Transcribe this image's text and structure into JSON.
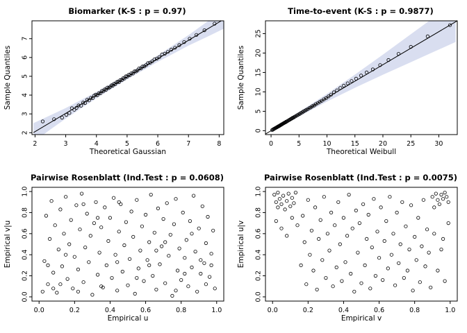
{
  "page": {
    "background": "#ffffff",
    "point_color": "#000000",
    "band_color": "#d9def0"
  },
  "chart_data": [
    {
      "type": "scatter",
      "kind": "qq-plot",
      "title": "Biomarker (K-S : p = 0.97)",
      "xlabel": "Theoretical Gaussian",
      "ylabel": "Sample Quantiles",
      "x_range": [
        1.9,
        8.15
      ],
      "y_range": [
        1.9,
        7.95
      ],
      "x_ticks": [
        "2",
        "3",
        "4",
        "5",
        "6",
        "7",
        "8"
      ],
      "y_ticks": [
        "2",
        "3",
        "4",
        "5",
        "6",
        "7"
      ],
      "band": {
        "color": "#d9def0",
        "x": [
          1.95,
          2.5,
          3.0,
          4.0,
          5.0,
          6.0,
          7.0,
          7.6,
          8.15
        ],
        "upper": [
          2.51,
          2.93,
          3.31,
          4.17,
          5.11,
          6.11,
          7.19,
          7.89,
          8.53
        ],
        "lower": [
          1.51,
          2.17,
          2.75,
          3.83,
          4.83,
          5.77,
          6.63,
          7.09,
          7.53
        ]
      },
      "line": {
        "x1": 1.95,
        "y1": 2.01,
        "x2": 8.15,
        "y2": 8.03
      },
      "points": [
        2.25,
        2.6,
        2.62,
        2.72,
        2.88,
        2.8,
        3.02,
        2.95,
        3.12,
        3.05,
        3.2,
        3.3,
        3.28,
        3.22,
        3.35,
        3.32,
        3.42,
        3.45,
        3.5,
        3.44,
        3.57,
        3.6,
        3.63,
        3.58,
        3.7,
        3.75,
        3.76,
        3.72,
        3.82,
        3.85,
        3.88,
        3.84,
        3.93,
        3.97,
        3.98,
        4.02,
        4.03,
        4.0,
        4.08,
        4.1,
        4.13,
        4.1,
        4.18,
        4.22,
        4.22,
        4.2,
        4.27,
        4.3,
        4.31,
        4.28,
        4.36,
        4.4,
        4.4,
        4.38,
        4.44,
        4.42,
        4.49,
        4.52,
        4.53,
        4.5,
        4.57,
        4.6,
        4.61,
        4.58,
        4.66,
        4.68,
        4.7,
        4.72,
        4.74,
        4.7,
        4.78,
        4.8,
        4.83,
        4.8,
        4.87,
        4.9,
        4.91,
        4.88,
        4.96,
        5.0,
        5.0,
        4.98,
        5.05,
        5.08,
        5.09,
        5.06,
        5.14,
        5.16,
        5.19,
        5.15,
        5.24,
        5.26,
        5.29,
        5.26,
        5.34,
        5.32,
        5.39,
        5.42,
        5.45,
        5.42,
        5.5,
        5.52,
        5.56,
        5.53,
        5.62,
        5.6,
        5.68,
        5.7,
        5.75,
        5.72,
        5.82,
        5.8,
        5.89,
        5.9,
        5.97,
        5.94,
        6.05,
        6.02,
        6.14,
        6.16,
        6.23,
        6.2,
        6.33,
        6.3,
        6.44,
        6.42,
        6.56,
        6.52,
        6.7,
        6.66,
        6.86,
        6.82,
        7.04,
        7.0,
        7.26,
        7.2,
        7.52,
        7.45,
        7.85,
        7.8
      ]
    },
    {
      "type": "scatter",
      "kind": "qq-plot",
      "title": "Time-to-event (K-S : p = 0.9877)",
      "xlabel": "Theoretical Weibull",
      "ylabel": "Sample Quantiles",
      "x_range": [
        -1.0,
        33.3
      ],
      "y_range": [
        -1.0,
        28.3
      ],
      "x_ticks": [
        "0",
        "5",
        "10",
        "15",
        "20",
        "25",
        "30"
      ],
      "y_ticks": [
        "0",
        "5",
        "10",
        "15",
        "20",
        "25"
      ],
      "band": {
        "color": "#d9def0",
        "x": [
          0,
          5,
          10,
          15,
          20,
          25,
          29,
          33
        ],
        "upper": [
          0.35,
          4.85,
          9.5,
          14.45,
          19.6,
          24.85,
          29.05,
          33.25
        ],
        "lower": [
          -0.35,
          3.65,
          7.5,
          11.05,
          14.4,
          17.65,
          20.25,
          22.85
        ]
      },
      "line": {
        "x1": -1.0,
        "y1": -0.85,
        "x2": 33.3,
        "y2": 28.3
      },
      "points": [
        0.2,
        0.18,
        0.35,
        0.32,
        0.5,
        0.45,
        0.62,
        0.55,
        0.75,
        0.66,
        0.85,
        0.74,
        0.95,
        0.82,
        1.05,
        0.9,
        1.15,
        1.0,
        1.25,
        1.05,
        1.35,
        1.17,
        1.45,
        1.22,
        1.55,
        1.33,
        1.65,
        1.4,
        1.75,
        1.5,
        1.85,
        1.56,
        1.95,
        1.68,
        2.05,
        1.73,
        2.2,
        1.88,
        2.3,
        1.97,
        2.45,
        2.1,
        2.55,
        2.15,
        2.7,
        2.32,
        2.8,
        2.36,
        2.95,
        2.52,
        3.1,
        2.62,
        3.25,
        2.78,
        3.4,
        2.87,
        3.55,
        3.04,
        3.7,
        3.12,
        3.85,
        3.3,
        4.0,
        3.38,
        4.2,
        3.58,
        4.35,
        3.68,
        4.55,
        3.88,
        4.75,
        4.02,
        4.95,
        4.22,
        5.15,
        4.36,
        5.35,
        4.57,
        5.6,
        4.74,
        5.8,
        4.96,
        6.05,
        5.12,
        6.3,
        5.38,
        6.55,
        5.55,
        6.85,
        5.84,
        7.1,
        6.0,
        7.4,
        6.32,
        7.7,
        6.5,
        8.0,
        6.85,
        8.35,
        7.1,
        8.7,
        7.42,
        9.05,
        7.7,
        9.45,
        8.1,
        9.85,
        8.4,
        10.3,
        8.85,
        10.75,
        9.3,
        11.25,
        9.9,
        11.8,
        10.4,
        12.4,
        11.0,
        13.0,
        11.6,
        13.7,
        12.2,
        14.4,
        12.8,
        15.2,
        13.4,
        16.1,
        14.2,
        17.1,
        15.0,
        18.2,
        15.8,
        19.5,
        16.9,
        21.0,
        18.2,
        22.8,
        19.8,
        25.0,
        21.6,
        28.0,
        24.3,
        32.0,
        27.2
      ]
    },
    {
      "type": "scatter",
      "kind": "rosenblatt",
      "title": "Pairwise Rosenblatt (Ind.Test : p = 0.0608)",
      "xlabel": "Empirical u",
      "ylabel": "Empirical v|u",
      "x_range": [
        -0.04,
        1.04
      ],
      "y_range": [
        -0.04,
        1.04
      ],
      "x_ticks": [
        "0.0",
        "0.2",
        "0.4",
        "0.6",
        "0.8",
        "1.0"
      ],
      "y_ticks": [
        "0.0",
        "0.2",
        "0.4",
        "0.6",
        "0.8",
        "1.0"
      ],
      "band": null,
      "line": null,
      "points": [
        0.02,
        0.05,
        0.03,
        0.34,
        0.04,
        0.77,
        0.05,
        0.12,
        0.06,
        0.55,
        0.07,
        0.91,
        0.08,
        0.23,
        0.09,
        0.68,
        0.1,
        0.04,
        0.11,
        0.45,
        0.12,
        0.83,
        0.13,
        0.29,
        0.14,
        0.6,
        0.15,
        0.95,
        0.16,
        0.17,
        0.17,
        0.5,
        0.18,
        0.73,
        0.19,
        0.08,
        0.2,
        0.38,
        0.21,
        0.87,
        0.22,
        0.26,
        0.23,
        0.64,
        0.24,
        0.98,
        0.25,
        0.14,
        0.26,
        0.47,
        0.27,
        0.79,
        0.28,
        0.33,
        0.29,
        0.58,
        0.3,
        0.02,
        0.31,
        0.7,
        0.32,
        0.9,
        0.33,
        0.21,
        0.34,
        0.42,
        0.35,
        0.66,
        0.36,
        0.09,
        0.37,
        0.85,
        0.38,
        0.3,
        0.39,
        0.53,
        0.4,
        0.75,
        0.41,
        0.18,
        0.42,
        0.94,
        0.43,
        0.4,
        0.44,
        0.06,
        0.45,
        0.62,
        0.46,
        0.88,
        0.47,
        0.24,
        0.48,
        0.49,
        0.49,
        0.71,
        0.5,
        0.11,
        0.51,
        0.36,
        0.52,
        0.81,
        0.53,
        0.57,
        0.54,
        0.03,
        0.55,
        0.92,
        0.56,
        0.27,
        0.57,
        0.44,
        0.58,
        0.67,
        0.59,
        0.15,
        0.6,
        0.78,
        0.61,
        0.35,
        0.62,
        0.52,
        0.63,
        0.97,
        0.64,
        0.2,
        0.65,
        0.61,
        0.66,
        0.07,
        0.67,
        0.84,
        0.68,
        0.31,
        0.69,
        0.48,
        0.7,
        0.74,
        0.71,
        0.13,
        0.72,
        0.89,
        0.73,
        0.39,
        0.74,
        0.59,
        0.75,
        0.01,
        0.76,
        0.69,
        0.77,
        0.93,
        0.78,
        0.25,
        0.79,
        0.46,
        0.8,
        0.16,
        0.81,
        0.8,
        0.82,
        0.37,
        0.83,
        0.54,
        0.84,
        0.1,
        0.85,
        0.72,
        0.86,
        0.28,
        0.87,
        0.96,
        0.88,
        0.43,
        0.89,
        0.05,
        0.9,
        0.65,
        0.91,
        0.22,
        0.92,
        0.86,
        0.93,
        0.32,
        0.94,
        0.51,
        0.95,
        0.76,
        0.96,
        0.19,
        0.97,
        0.41,
        0.98,
        0.63,
        0.99,
        0.08,
        0.05,
        0.3,
        0.08,
        0.08,
        0.12,
        0.12,
        0.15,
        0.4,
        0.22,
        0.05,
        0.33,
        0.75,
        0.44,
        0.33,
        0.55,
        0.18,
        0.62,
        0.3,
        0.66,
        0.44,
        0.71,
        0.52,
        0.77,
        0.06,
        0.82,
        0.22,
        0.86,
        0.6,
        0.91,
        0.35,
        0.94,
        0.12,
        0.97,
        0.3,
        0.25,
        0.88,
        0.35,
        0.1,
        0.45,
        0.9
      ]
    },
    {
      "type": "scatter",
      "kind": "rosenblatt",
      "title": "Pairwise Rosenblatt (Ind.Test : p = 0.0075)",
      "xlabel": "Empirical v",
      "ylabel": "Empirical u|v",
      "x_range": [
        -0.04,
        1.04
      ],
      "y_range": [
        -0.04,
        1.04
      ],
      "x_ticks": [
        "0.0",
        "0.2",
        "0.4",
        "0.6",
        "0.8",
        "1.0"
      ],
      "y_ticks": [
        "0.0",
        "0.2",
        "0.4",
        "0.6",
        "0.8",
        "1.0"
      ],
      "band": null,
      "line": null,
      "points": [
        0.01,
        0.97,
        0.02,
        0.9,
        0.03,
        0.99,
        0.03,
        0.85,
        0.04,
        0.93,
        0.05,
        0.88,
        0.06,
        0.96,
        0.07,
        0.83,
        0.08,
        0.91,
        0.09,
        0.98,
        0.1,
        0.86,
        0.11,
        0.94,
        0.12,
        0.89,
        0.13,
        0.99,
        0.02,
        0.72,
        0.05,
        0.65,
        0.08,
        0.58,
        0.11,
        0.75,
        0.14,
        0.68,
        0.9,
        0.95,
        0.92,
        0.98,
        0.93,
        0.92,
        0.95,
        0.97,
        0.96,
        0.93,
        0.97,
        0.99,
        0.98,
        0.95,
        0.99,
        0.9,
        0.94,
        0.88,
        0.91,
        0.85,
        0.16,
        0.3,
        0.17,
        0.77,
        0.18,
        0.52,
        0.19,
        0.12,
        0.2,
        0.92,
        0.21,
        0.4,
        0.22,
        0.63,
        0.23,
        0.25,
        0.24,
        0.85,
        0.25,
        0.07,
        0.26,
        0.55,
        0.27,
        0.73,
        0.28,
        0.35,
        0.29,
        0.95,
        0.3,
        0.18,
        0.31,
        0.6,
        0.32,
        0.44,
        0.33,
        0.8,
        0.34,
        0.1,
        0.35,
        0.68,
        0.36,
        0.28,
        0.37,
        0.9,
        0.38,
        0.5,
        0.39,
        0.15,
        0.4,
        0.75,
        0.41,
        0.33,
        0.42,
        0.58,
        0.43,
        0.97,
        0.44,
        0.22,
        0.45,
        0.65,
        0.46,
        0.05,
        0.47,
        0.82,
        0.48,
        0.42,
        0.49,
        0.7,
        0.5,
        0.13,
        0.51,
        0.88,
        0.52,
        0.3,
        0.53,
        0.55,
        0.54,
        0.78,
        0.55,
        0.08,
        0.56,
        0.47,
        0.57,
        0.93,
        0.58,
        0.2,
        0.59,
        0.62,
        0.6,
        0.37,
        0.61,
        0.85,
        0.62,
        0.16,
        0.63,
        0.53,
        0.64,
        0.72,
        0.65,
        0.27,
        0.66,
        0.95,
        0.67,
        0.4,
        0.68,
        0.6,
        0.69,
        0.11,
        0.7,
        0.8,
        0.71,
        0.32,
        0.72,
        0.5,
        0.73,
        0.9,
        0.74,
        0.18,
        0.75,
        0.67,
        0.76,
        0.25,
        0.77,
        0.45,
        0.78,
        0.87,
        0.79,
        0.06,
        0.8,
        0.57,
        0.81,
        0.35,
        0.82,
        0.75,
        0.83,
        0.14,
        0.84,
        0.48,
        0.85,
        0.92,
        0.86,
        0.29,
        0.87,
        0.64,
        0.88,
        0.42,
        0.89,
        0.09,
        0.93,
        0.25,
        0.95,
        0.45,
        0.97,
        0.15,
        0.91,
        0.6,
        0.99,
        0.7,
        0.96,
        0.55
      ]
    }
  ]
}
